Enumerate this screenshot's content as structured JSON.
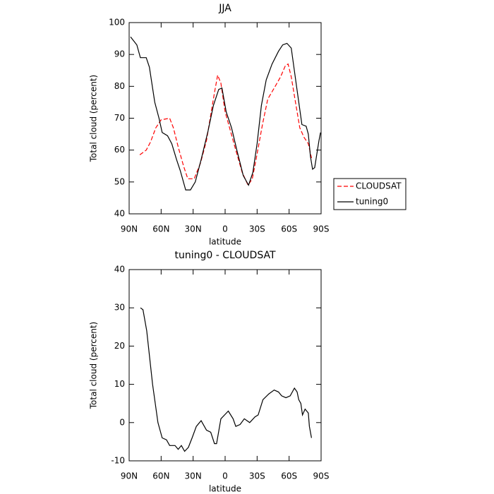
{
  "chart_data": [
    {
      "type": "line",
      "title": "JJA",
      "xlabel": "latitude",
      "ylabel": "Total cloud (percent)",
      "xlim": [
        90,
        -90
      ],
      "xticks": [
        {
          "value": 90,
          "label": "90N"
        },
        {
          "value": 60,
          "label": "60N"
        },
        {
          "value": 30,
          "label": "30N"
        },
        0,
        {
          "value": -30,
          "label": "30S"
        },
        {
          "value": -60,
          "label": "60S"
        },
        {
          "value": -90,
          "label": "90S"
        }
      ],
      "ylim": [
        40,
        100
      ],
      "yticks": [
        40,
        50,
        60,
        70,
        80,
        90,
        100
      ],
      "legend": "right",
      "series": [
        {
          "name": "CLOUDSAT",
          "color": "#ff0000",
          "dash": true,
          "x": [
            80,
            74,
            70,
            65,
            60,
            52,
            48.5,
            44,
            39,
            35,
            29,
            23,
            17.5,
            12.5,
            10,
            7,
            4,
            0,
            -5,
            -10,
            -16,
            -21.5,
            -25.5,
            -29,
            -35,
            -40,
            -47,
            -52,
            -56.5,
            -59,
            -62,
            -66,
            -70,
            -74,
            -78,
            -81
          ],
          "values": [
            58.5,
            60,
            62.5,
            67,
            69.5,
            70,
            67,
            61,
            55,
            51,
            51,
            56,
            63,
            73,
            78,
            83.5,
            81,
            72,
            66,
            60,
            53,
            49,
            51,
            57,
            68,
            76,
            80,
            83,
            86.5,
            87,
            83,
            75,
            67,
            64,
            62,
            57.5
          ]
        },
        {
          "name": "tuning0",
          "color": "#000000",
          "dash": false,
          "x": [
            88.7,
            82.8,
            79.5,
            74,
            71,
            66,
            62,
            59,
            54,
            50,
            45.5,
            42,
            37,
            32.5,
            28,
            22.5,
            16,
            11,
            6,
            3,
            -1,
            -6,
            -11,
            -17,
            -22,
            -26,
            -30,
            -34,
            -38.5,
            -44,
            -50,
            -54,
            -58,
            -62,
            -67,
            -72,
            -76,
            -78,
            -80,
            -82,
            -84,
            -88,
            -89.5
          ],
          "values": [
            95.5,
            93,
            89,
            89,
            86,
            75,
            70,
            65.5,
            64.5,
            62,
            57,
            53.5,
            47.5,
            47.5,
            50,
            57,
            66,
            74,
            79,
            79.5,
            72,
            67,
            60,
            52,
            49,
            53,
            62,
            74,
            82,
            87,
            91,
            93,
            93.5,
            92,
            80,
            68,
            67.5,
            65,
            58,
            54,
            54.5,
            63,
            65.5
          ]
        }
      ]
    },
    {
      "type": "line",
      "title": "tuning0 - CLOUDSAT",
      "xlabel": "latitude",
      "ylabel": "Total cloud (percent)",
      "xlim": [
        90,
        -90
      ],
      "xticks": [
        {
          "value": 90,
          "label": "90N"
        },
        {
          "value": 60,
          "label": "60N"
        },
        {
          "value": 30,
          "label": "30N"
        },
        0,
        {
          "value": -30,
          "label": "30S"
        },
        {
          "value": -60,
          "label": "60S"
        },
        {
          "value": -90,
          "label": "90S"
        }
      ],
      "ylim": [
        -10,
        40
      ],
      "yticks": [
        -10,
        0,
        10,
        20,
        30,
        40
      ],
      "series": [
        {
          "color": "#000000",
          "dash": false,
          "x": [
            79.4,
            77,
            73.5,
            68,
            63,
            59,
            55,
            52,
            47,
            44,
            41,
            38,
            34.5,
            31,
            27,
            22.5,
            17.5,
            13.5,
            10,
            8,
            4,
            0.5,
            -3,
            -7.5,
            -10,
            -14,
            -18,
            -23,
            -28,
            -31,
            -35.5,
            -41,
            -46,
            -50,
            -53,
            -57,
            -61,
            -65,
            -67.5,
            -69,
            -71,
            -72.5,
            -75,
            -78,
            -79,
            -81
          ],
          "values": [
            30,
            29.5,
            24,
            10,
            0,
            -4,
            -4.5,
            -6,
            -6,
            -7,
            -6,
            -7.5,
            -6.5,
            -4,
            -1,
            0.5,
            -2,
            -2.5,
            -5.5,
            -5.5,
            1,
            2,
            3,
            1,
            -1,
            -0.5,
            1,
            0,
            1.5,
            2,
            6,
            7.5,
            8.5,
            8,
            7,
            6.5,
            7,
            9,
            8,
            6,
            5,
            2,
            3.5,
            2.5,
            -1,
            -4
          ]
        }
      ]
    }
  ]
}
